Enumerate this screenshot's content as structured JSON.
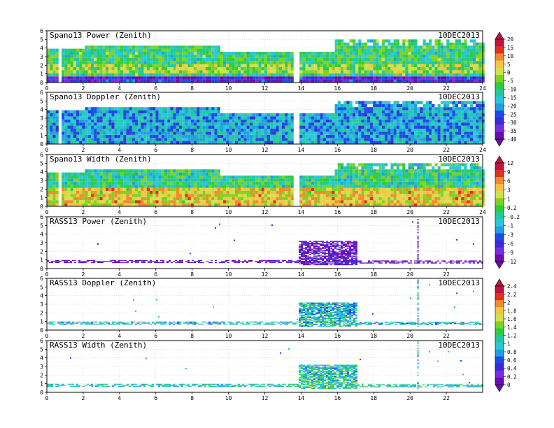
{
  "chart_data": {
    "type": "heatmap",
    "date": "10DEC2013",
    "xaxis": {
      "range": [
        0,
        24
      ],
      "ticks_full": [
        "0",
        "2",
        "4",
        "6",
        "8",
        "10",
        "12",
        "14",
        "16",
        "18",
        "20",
        "22",
        "24"
      ],
      "ticks_short": [
        "0",
        "2",
        "4",
        "6",
        "8",
        "10",
        "12",
        "14",
        "16",
        "18",
        "20",
        "22"
      ]
    },
    "yaxis": {
      "range": [
        0,
        6
      ],
      "ticks": [
        "0",
        "1",
        "2",
        "3",
        "4",
        "5",
        "6"
      ]
    },
    "grid": true,
    "panels": [
      {
        "title": "Spano13 Power (Zenith)",
        "kind": "spano",
        "colorbar": 1,
        "base": 0.44,
        "xticks": "full"
      },
      {
        "title": "Spano13 Doppler (Zenith)",
        "kind": "spano",
        "colorbar": 1,
        "base": 0.35,
        "xticks": "full"
      },
      {
        "title": "Spano13 Width (Zenith)",
        "kind": "spano",
        "colorbar": 2,
        "base": 0.62,
        "xticks": "full"
      },
      {
        "title": "RASS13 Power (Zenith)",
        "kind": "rass",
        "colorbar": 2,
        "base": 0.05,
        "xticks": "short"
      },
      {
        "title": "RASS13 Doppler (Zenith)",
        "kind": "rass",
        "colorbar": 3,
        "base": 0.38,
        "xticks": "short"
      },
      {
        "title": "RASS13 Width (Zenith)",
        "kind": "rass",
        "colorbar": 3,
        "base": 0.42,
        "xticks": "short"
      }
    ],
    "colorbars": [
      {
        "labels": [
          "20",
          "15",
          "10",
          "5",
          "0",
          "-5",
          "-10",
          "-15",
          "-20",
          "-25",
          "-30",
          "-35",
          "-40"
        ]
      },
      {
        "labels": [
          "12",
          "9",
          "6",
          "3",
          "1",
          "0.2",
          "-0.2",
          "-1",
          "-3",
          "-6",
          "-9",
          "-12"
        ]
      },
      {
        "labels": [
          "2.4",
          "2.2",
          "2",
          "1.8",
          "1.6",
          "1.4",
          "1.2",
          "1",
          "0.8",
          "0.6",
          "0.4",
          "0.2",
          "0"
        ]
      }
    ],
    "palette": [
      "#6a0dad",
      "#7a2be2",
      "#3a2bd6",
      "#1f48e8",
      "#1f9fe0",
      "#27c8d8",
      "#22c8a0",
      "#2ecc40",
      "#7ed321",
      "#d4e04a",
      "#f5c542",
      "#f08a2b",
      "#e0301e",
      "#c0143c"
    ]
  }
}
